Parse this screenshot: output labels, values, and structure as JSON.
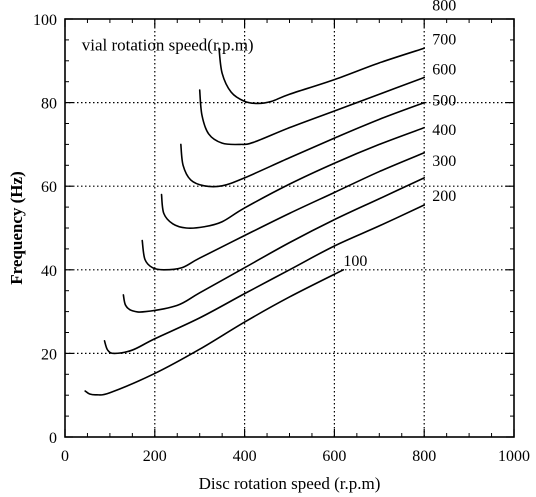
{
  "chart_data": {
    "type": "line",
    "title": "",
    "xlabel": "Disc rotation speed (r.p.m)",
    "ylabel": "Frequency (Hz)",
    "xlim": [
      0,
      1000
    ],
    "ylim": [
      0,
      100
    ],
    "xticks": [
      0,
      200,
      400,
      600,
      800,
      1000
    ],
    "yticks": [
      0,
      20,
      40,
      60,
      80,
      100
    ],
    "grid": true,
    "grid_style": "dotted",
    "annotation": "vial rotation speed(r.p.m)",
    "series": [
      {
        "name": "100",
        "x": [
          45,
          55,
          70,
          100,
          200,
          300,
          400,
          500,
          620
        ],
        "y": [
          11,
          10.3,
          10.1,
          10.6,
          15.2,
          21,
          27.5,
          33.5,
          40
        ]
      },
      {
        "name": "200",
        "x": [
          88,
          95,
          110,
          150,
          200,
          300,
          400,
          500,
          600,
          700,
          800
        ],
        "y": [
          23,
          20.8,
          20,
          20.8,
          23.5,
          28.5,
          34.3,
          40,
          45.7,
          50.5,
          55.5
        ]
      },
      {
        "name": "300",
        "x": [
          130,
          135,
          150,
          180,
          250,
          300,
          400,
          500,
          600,
          700,
          800
        ],
        "y": [
          34,
          31.5,
          30.2,
          30,
          31.5,
          34.5,
          40.5,
          46.5,
          52,
          57,
          62
        ]
      },
      {
        "name": "400",
        "x": [
          172,
          178,
          195,
          220,
          260,
          300,
          400,
          500,
          600,
          700,
          800
        ],
        "y": [
          47,
          42.5,
          40.5,
          40,
          40.5,
          42.8,
          48.2,
          53.5,
          58.5,
          63.5,
          68
        ]
      },
      {
        "name": "500",
        "x": [
          215,
          220,
          240,
          270,
          310,
          350,
          400,
          500,
          600,
          700,
          800
        ],
        "y": [
          58,
          53.5,
          51,
          50,
          50.3,
          51.5,
          54.8,
          60.5,
          65.5,
          70,
          74
        ]
      },
      {
        "name": "600",
        "x": [
          258,
          263,
          280,
          310,
          350,
          400,
          500,
          600,
          700,
          800
        ],
        "y": [
          70,
          65,
          61.5,
          60.1,
          60.1,
          62,
          66.8,
          71.5,
          76,
          80
        ]
      },
      {
        "name": "700",
        "x": [
          300,
          305,
          320,
          350,
          390,
          420,
          500,
          600,
          700,
          800
        ],
        "y": [
          83,
          77,
          72.5,
          70.3,
          70,
          70.5,
          74,
          78,
          82,
          86
        ]
      },
      {
        "name": "800",
        "x": [
          343,
          350,
          370,
          400,
          430,
          460,
          500,
          600,
          700,
          800
        ],
        "y": [
          93,
          87,
          82.5,
          80.3,
          79.8,
          80.3,
          82,
          85.5,
          89.5,
          93
        ]
      }
    ]
  }
}
